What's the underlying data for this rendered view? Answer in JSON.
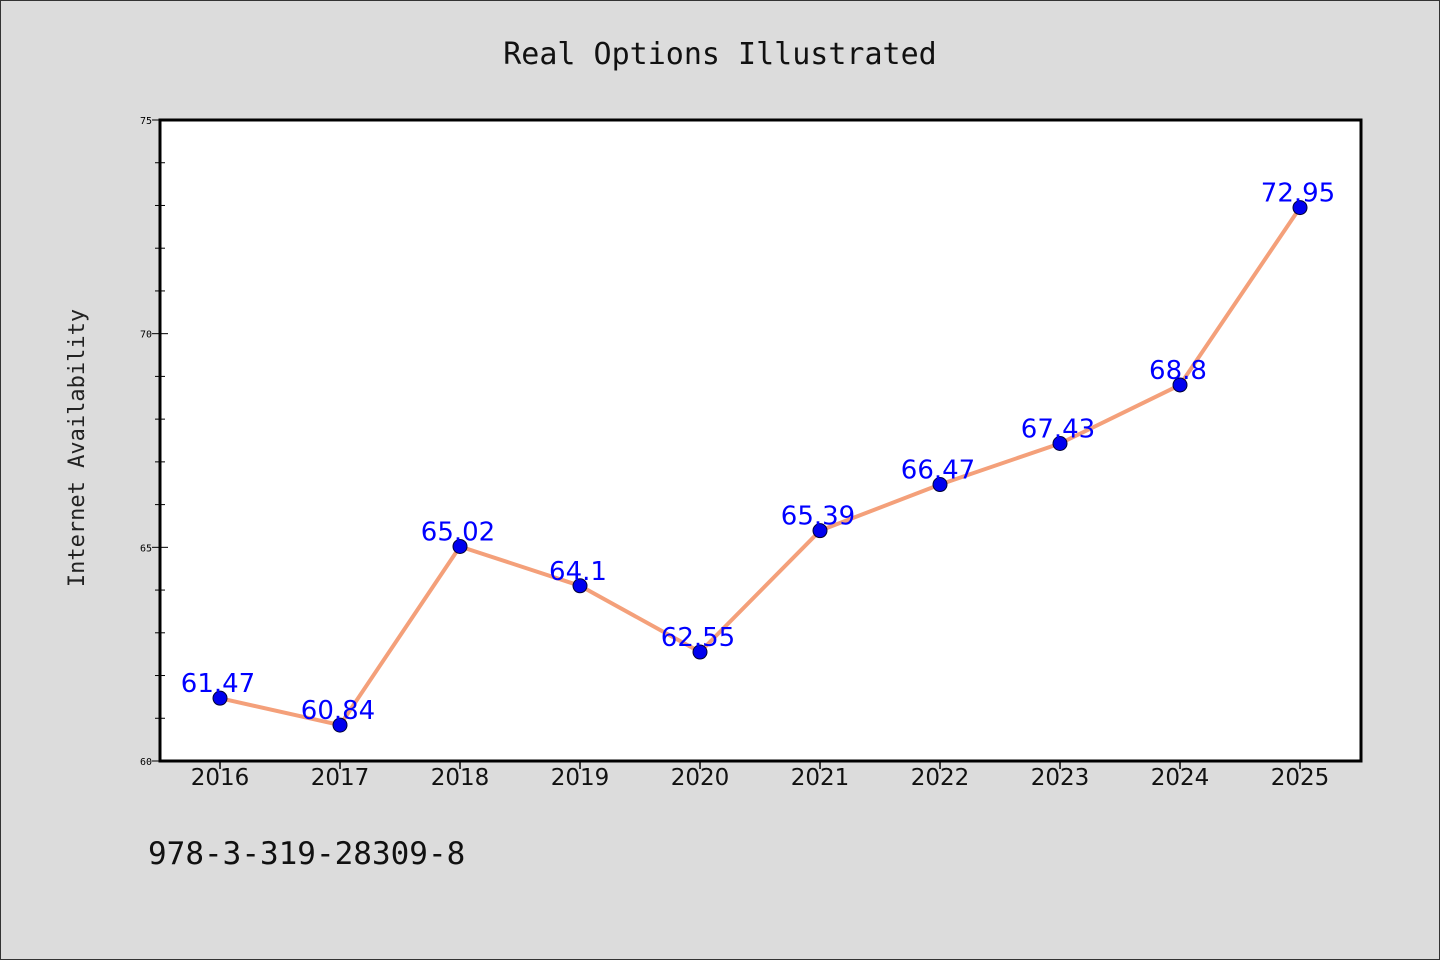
{
  "chart_data": {
    "type": "line",
    "title": "Real Options Illustrated",
    "xlabel": "",
    "ylabel": "Internet Availability",
    "categories": [
      "2016",
      "2017",
      "2018",
      "2019",
      "2020",
      "2021",
      "2022",
      "2023",
      "2024",
      "2025"
    ],
    "series": [
      {
        "values": [
          61.47,
          60.84,
          65.02,
          64.1,
          62.55,
          65.39,
          66.47,
          67.43,
          68.8,
          72.95
        ],
        "labels": [
          "61.47",
          "60.84",
          "65.02",
          "64.1",
          "62.55",
          "65.39",
          "66.47",
          "67.43",
          "68.8",
          "72.95"
        ],
        "line_color": "#f4a07a",
        "marker_color": "#0000ee",
        "label_color": "#0000ff"
      }
    ],
    "ylim": [
      60,
      75
    ],
    "yticks": [
      "60",
      "65",
      "70",
      "75"
    ],
    "grid": false,
    "legend": "none",
    "background": "#dcdcdc",
    "plot_background": "#ffffff"
  },
  "footer": {
    "isbn": "978-3-319-28309-8"
  }
}
